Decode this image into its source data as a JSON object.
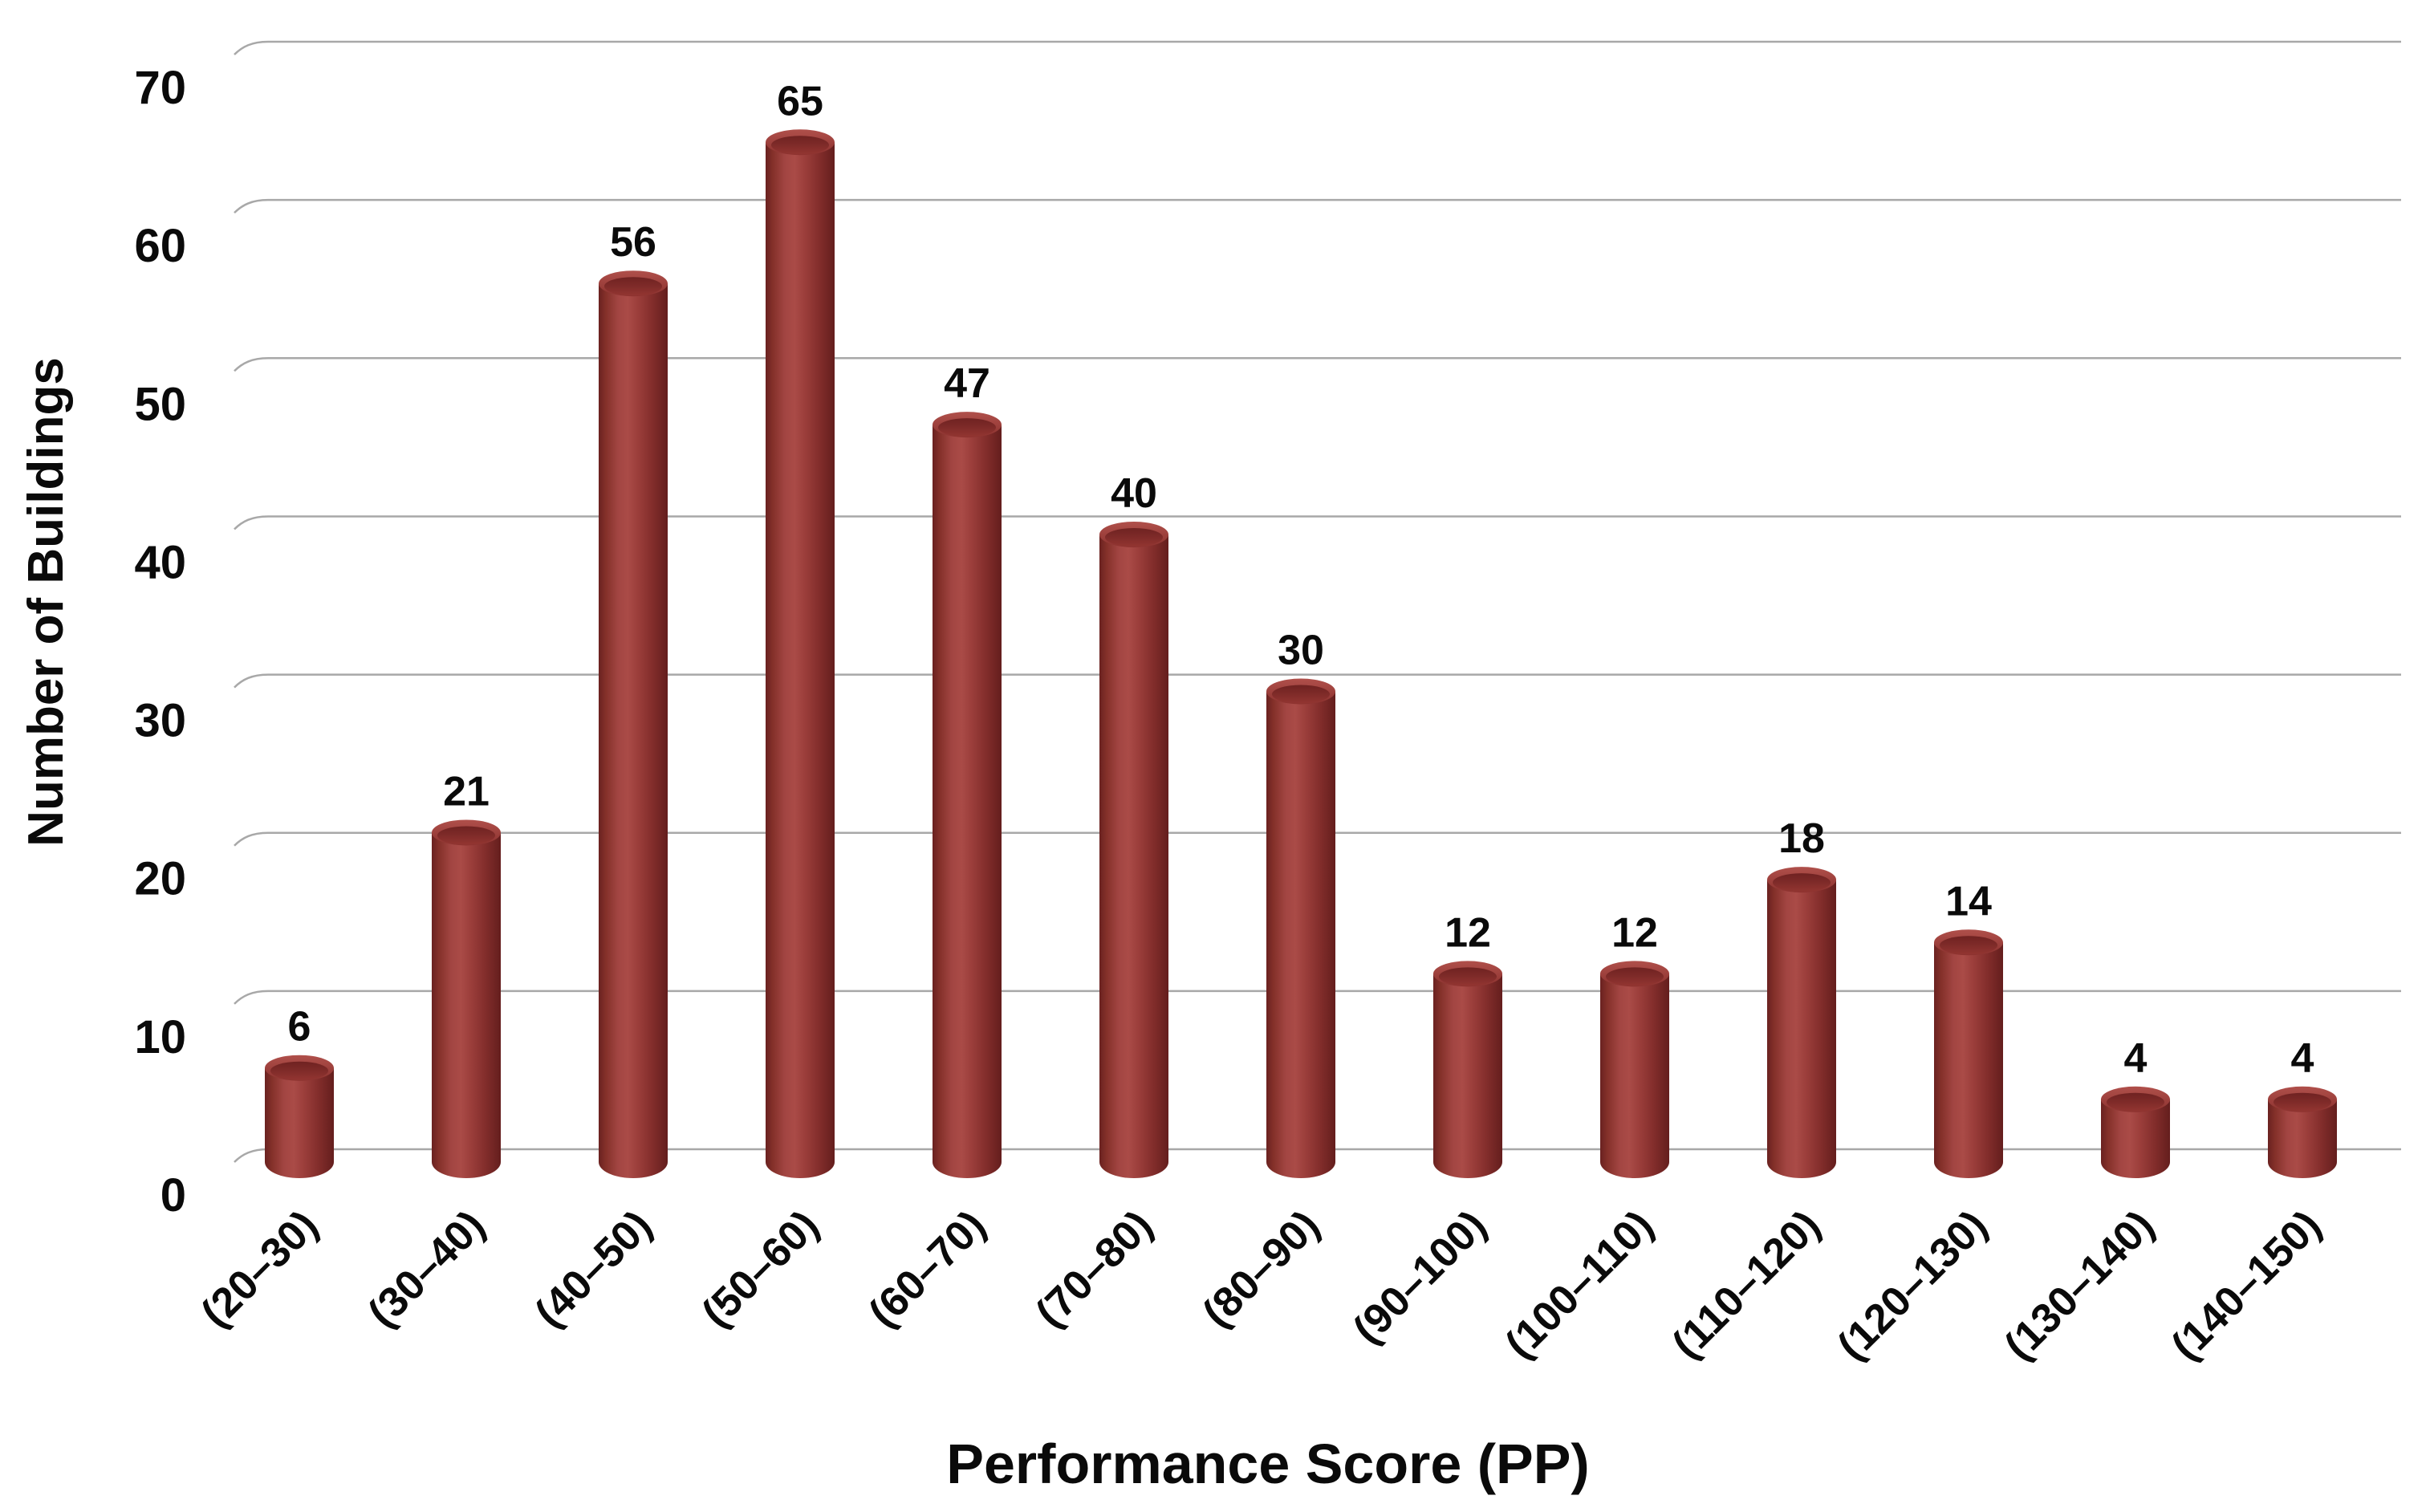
{
  "chart_data": {
    "type": "bar",
    "title": "",
    "categories": [
      "(20–30)",
      "(30–40)",
      "(40–50)",
      "(50–60)",
      "(60–70)",
      "(70–80)",
      "(80–90)",
      "(90–100)",
      "(100–110)",
      "(110–120)",
      "(120–130)",
      "(130–140)",
      "(140–150)"
    ],
    "values": [
      6,
      21,
      56,
      65,
      47,
      40,
      30,
      12,
      12,
      18,
      14,
      4,
      4
    ],
    "xlabel": "Performance Score (PP)",
    "ylabel": "Number of Buildings",
    "ylim": [
      0,
      70
    ],
    "yticks": [
      0,
      10,
      20,
      30,
      40,
      50,
      60,
      70
    ],
    "grid": true,
    "legend_position": "none",
    "bar_style": "3d-cylinder",
    "colors": {
      "bar_mid": "#a84946",
      "bar_edge_dark": "#671f1e",
      "bar_cap_inner": "#7b2927",
      "gridline": "#a8a8a8",
      "text": "#0a0a0a",
      "background": "#ffffff"
    }
  }
}
